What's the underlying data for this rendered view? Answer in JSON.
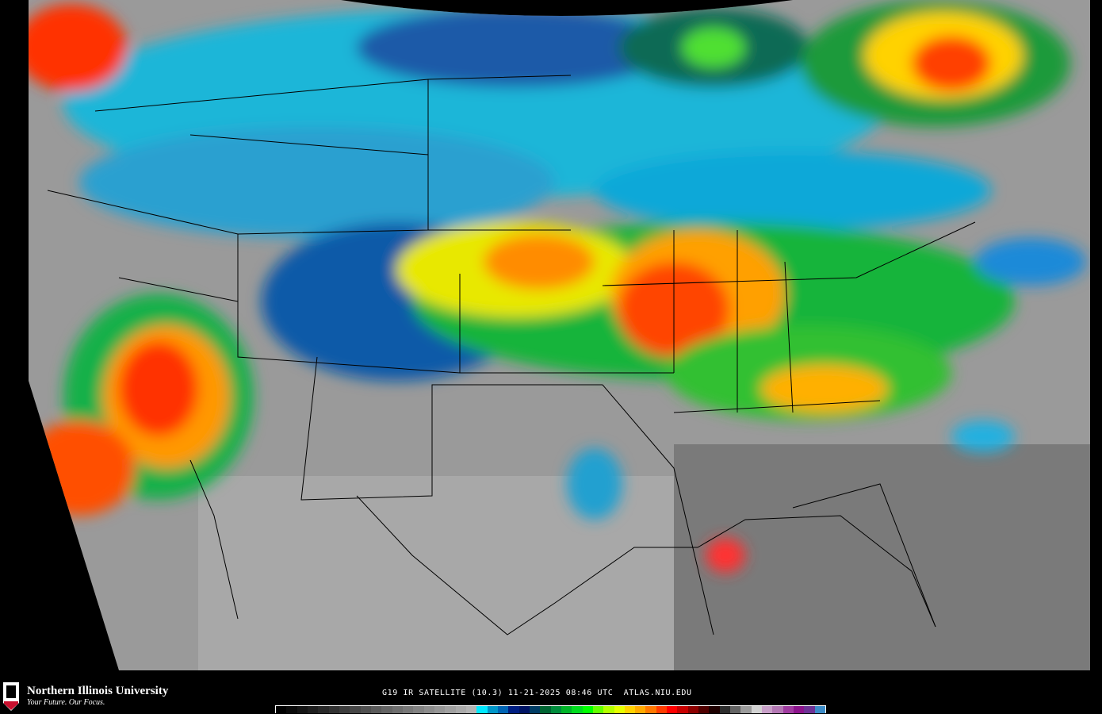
{
  "logo": {
    "name": "Northern Illinois University",
    "tagline": "Your Future. Our Focus.",
    "badge": "NIU"
  },
  "caption": {
    "satellite": "G19 IR SATELLITE (10.3)",
    "date": "11-21-2025",
    "time": "08:46 UTC",
    "site": "ATLAS.NIU.EDU"
  },
  "colorbar": [
    "#000000",
    "#0a0a0a",
    "#141414",
    "#1e1e1e",
    "#282828",
    "#323232",
    "#3c3c3c",
    "#464646",
    "#505050",
    "#5a5a5a",
    "#646464",
    "#6e6e6e",
    "#787878",
    "#828282",
    "#8c8c8c",
    "#969696",
    "#a0a0a0",
    "#aaaaaa",
    "#b4b4b4",
    "#00e8ff",
    "#0096c8",
    "#0064b4",
    "#001e82",
    "#001464",
    "#003c64",
    "#006432",
    "#008c3c",
    "#00b428",
    "#00dc1e",
    "#00ff00",
    "#64ff00",
    "#b4ff00",
    "#e6ff00",
    "#ffd200",
    "#ffaa00",
    "#ff7800",
    "#ff3c00",
    "#ff0000",
    "#c80000",
    "#8c0000",
    "#500000",
    "#1e0000",
    "#2d2d2d",
    "#646464",
    "#9b9b9b",
    "#d2d2d2",
    "#c8a0c8",
    "#b478b4",
    "#a03ca0",
    "#8c148c",
    "#6e3296",
    "#3c8cc8"
  ],
  "legend_meaning": "infrared cloud-top brightness temperature color scale"
}
